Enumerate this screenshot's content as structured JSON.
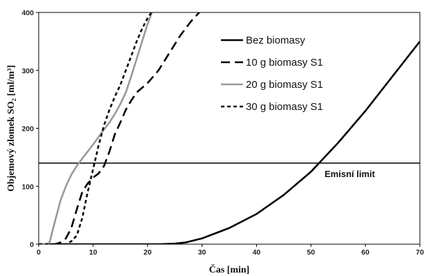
{
  "chart_data": {
    "type": "line",
    "xlabel": "Čas [min]",
    "ylabel": "Objemový zlomek SO₂ [ml/m³]",
    "xlim": [
      0,
      70
    ],
    "ylim": [
      0,
      400
    ],
    "x_ticks": [
      0,
      10,
      20,
      30,
      40,
      50,
      60,
      70
    ],
    "y_ticks": [
      0,
      100,
      200,
      300,
      400
    ],
    "grid": false,
    "legend_position": "top-right",
    "series": [
      {
        "name": "Bez biomasy",
        "color": "#000000",
        "dash": "solid",
        "points": [
          [
            0,
            0
          ],
          [
            22,
            0
          ],
          [
            25,
            1
          ],
          [
            27,
            3
          ],
          [
            30,
            10
          ],
          [
            35,
            28
          ],
          [
            40,
            52
          ],
          [
            45,
            85
          ],
          [
            50,
            125
          ],
          [
            55,
            175
          ],
          [
            60,
            230
          ],
          [
            65,
            290
          ],
          [
            70,
            350
          ]
        ]
      },
      {
        "name": "10 g biomasy S1",
        "color": "#000000",
        "dash": "long-dash",
        "points": [
          [
            0,
            0
          ],
          [
            3,
            0
          ],
          [
            4,
            3
          ],
          [
            5,
            10
          ],
          [
            6,
            28
          ],
          [
            7,
            60
          ],
          [
            8,
            90
          ],
          [
            9,
            105
          ],
          [
            10,
            115
          ],
          [
            11,
            122
          ],
          [
            12,
            135
          ],
          [
            13,
            160
          ],
          [
            14,
            190
          ],
          [
            15,
            210
          ],
          [
            16,
            232
          ],
          [
            17,
            248
          ],
          [
            18,
            262
          ],
          [
            20,
            278
          ],
          [
            22,
            300
          ],
          [
            24,
            330
          ],
          [
            26,
            360
          ],
          [
            28,
            385
          ],
          [
            29.5,
            400
          ]
        ]
      },
      {
        "name": "20 g biomasy S1",
        "color": "#999999",
        "dash": "solid",
        "points": [
          [
            0,
            0
          ],
          [
            1.5,
            0
          ],
          [
            2,
            3
          ],
          [
            3,
            40
          ],
          [
            4,
            75
          ],
          [
            5,
            100
          ],
          [
            6,
            120
          ],
          [
            7,
            135
          ],
          [
            8,
            148
          ],
          [
            9,
            160
          ],
          [
            10,
            172
          ],
          [
            11,
            185
          ],
          [
            12,
            198
          ],
          [
            13,
            210
          ],
          [
            14,
            225
          ],
          [
            15,
            242
          ],
          [
            16,
            262
          ],
          [
            17,
            290
          ],
          [
            18,
            320
          ],
          [
            19,
            350
          ],
          [
            20,
            380
          ],
          [
            20.8,
            400
          ]
        ]
      },
      {
        "name": "30 g biomasy S1",
        "color": "#000000",
        "dash": "short-dash",
        "points": [
          [
            0,
            0
          ],
          [
            5,
            0
          ],
          [
            6,
            5
          ],
          [
            7,
            15
          ],
          [
            8,
            45
          ],
          [
            9,
            90
          ],
          [
            10,
            130
          ],
          [
            11,
            170
          ],
          [
            12,
            205
          ],
          [
            13,
            232
          ],
          [
            14,
            255
          ],
          [
            15,
            275
          ],
          [
            16,
            300
          ],
          [
            17,
            325
          ],
          [
            18,
            350
          ],
          [
            19,
            372
          ],
          [
            20,
            390
          ],
          [
            20.7,
            400
          ]
        ]
      }
    ],
    "reference_line": {
      "y": 140,
      "label": "Emisní limit"
    }
  }
}
